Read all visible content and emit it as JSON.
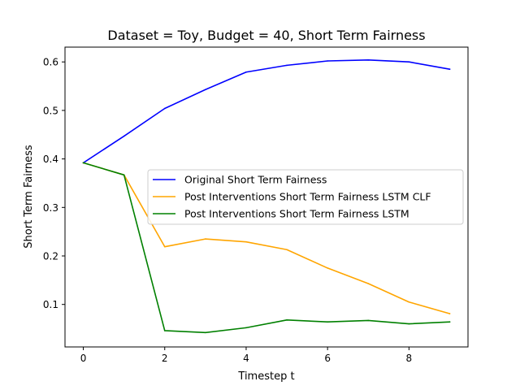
{
  "chart_data": {
    "type": "line",
    "title": "Dataset = Toy, Budget = 40, Short Term Fairness",
    "xlabel": "Timestep t",
    "ylabel": "Short Term Fairness",
    "x": [
      0,
      1,
      2,
      3,
      4,
      5,
      6,
      7,
      8,
      9
    ],
    "xlim": [
      -0.45,
      9.45
    ],
    "ylim": [
      0.0124,
      0.6305
    ],
    "xticks": [
      0,
      2,
      4,
      6,
      8
    ],
    "xtick_labels": [
      "0",
      "2",
      "4",
      "6",
      "8"
    ],
    "yticks": [
      0.1,
      0.2,
      0.3,
      0.4,
      0.5,
      0.6
    ],
    "ytick_labels": [
      "0.1",
      "0.2",
      "0.3",
      "0.4",
      "0.5",
      "0.6"
    ],
    "grid": false,
    "legend_position": "center-right",
    "series": [
      {
        "name": "Original Short Term Fairness",
        "color": "#0000ff",
        "values": [
          0.392,
          0.447,
          0.504,
          0.543,
          0.579,
          0.593,
          0.602,
          0.604,
          0.6,
          0.585
        ]
      },
      {
        "name": "Post Interventions Short Term Fairness LSTM CLF",
        "color": "#ffa500",
        "values": [
          0.392,
          0.367,
          0.219,
          0.235,
          0.229,
          0.213,
          0.175,
          0.143,
          0.105,
          0.081
        ]
      },
      {
        "name": "Post Interventions Short Term Fairness LSTM",
        "color": "#008000",
        "values": [
          0.392,
          0.367,
          0.046,
          0.042,
          0.052,
          0.068,
          0.064,
          0.067,
          0.06,
          0.064
        ]
      }
    ]
  }
}
